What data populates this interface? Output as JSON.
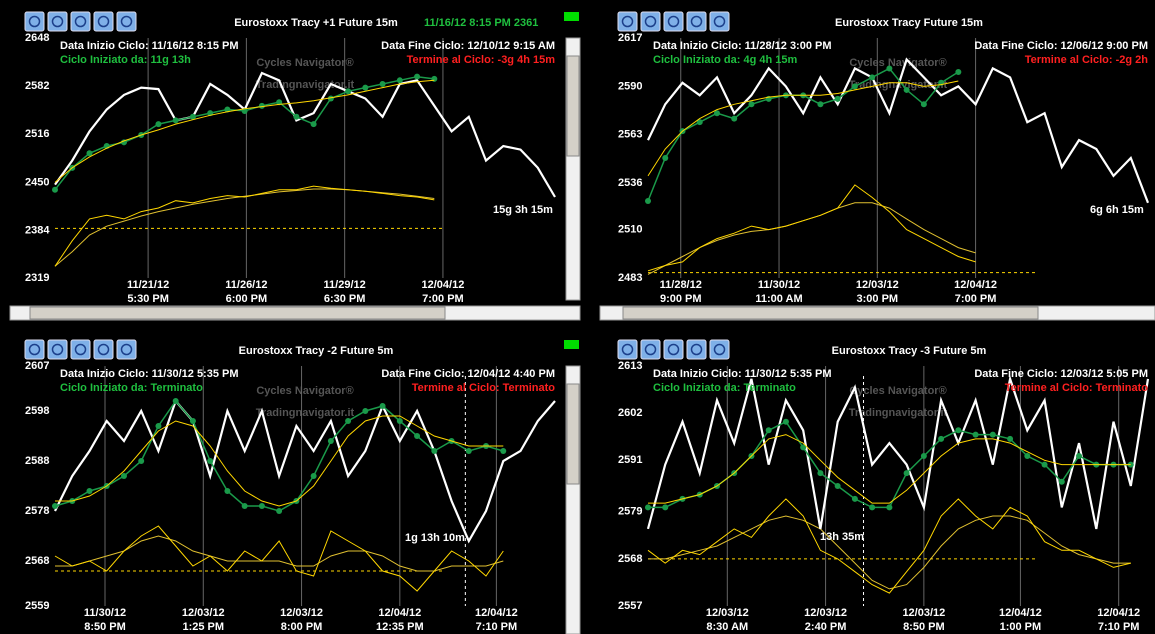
{
  "panels": [
    {
      "title": "Eurostoxx  Tracy +1  Future 15m",
      "status": "11/16/12 8:15 PM  2361",
      "indicator": "#00dd00",
      "start": "Data Inizio Ciclo: 11/16/12 8:15 PM",
      "end": "Data Fine Ciclo: 12/10/12 9:15 AM",
      "started": "Ciclo Iniziato da: 11g 13h",
      "remaining": "Termine al Ciclo: -3g 4h 15m",
      "watermark_1": "Cycles Navigator®",
      "watermark_2": "Tradingnavigator.it",
      "cycle_label": "15g 3h 15m",
      "chart_data": {
        "type": "line",
        "xlim": [
          0,
          29
        ],
        "ylim": [
          2319,
          2648
        ],
        "yticks": [
          2648,
          2582,
          2516,
          2450,
          2384,
          2319
        ],
        "xticks": [
          {
            "value": 5.4,
            "label": "11/21/12",
            "time": "5:30 PM"
          },
          {
            "value": 11.1,
            "label": "11/26/12",
            "time": "6:00 PM"
          },
          {
            "value": 16.8,
            "label": "11/29/12",
            "time": "6:30 PM"
          },
          {
            "value": 22.5,
            "label": "12/04/12",
            "time": "7:00 PM"
          }
        ],
        "threshold": 2387,
        "series": [
          {
            "color": "#e0c030",
            "values": [
              2335,
              2355,
              2378,
              2390,
              2397,
              2404,
              2410,
              2415,
              2420,
              2424,
              2428,
              2431,
              2434,
              2437,
              2439,
              2441,
              2441,
              2440,
              2438,
              2436,
              2434,
              2431,
              2428
            ]
          },
          {
            "color": "#ffd700",
            "values": [
              2335,
              2370,
              2400,
              2405,
              2400,
              2410,
              2415,
              2425,
              2422,
              2428,
              2432,
              2430,
              2435,
              2440,
              2440,
              2445,
              2442,
              2440,
              2438,
              2435,
              2432,
              2430,
              2426
            ]
          },
          {
            "color": "#ffffff",
            "values": [
              2447,
              2480,
              2520,
              2550,
              2570,
              2580,
              2578,
              2535,
              2540,
              2585,
              2570,
              2550,
              2600,
              2590,
              2535,
              2545,
              2585,
              2575,
              2565,
              2540,
              2585,
              2590,
              2555,
              2520,
              2540,
              2480,
              2500,
              2495,
              2470,
              2430
            ]
          },
          {
            "color": "#1a9a4a",
            "markers": true,
            "values": [
              2440,
              2470,
              2490,
              2500,
              2505,
              2515,
              2530,
              2535,
              2540,
              2545,
              2550,
              2548,
              2555,
              2560,
              2540,
              2530,
              2565,
              2575,
              2580,
              2585,
              2590,
              2595,
              2592
            ]
          },
          {
            "color": "#ffd700",
            "values": [
              2450,
              2470,
              2485,
              2497,
              2507,
              2515,
              2522,
              2530,
              2536,
              2542,
              2547,
              2551,
              2554,
              2557,
              2559,
              2562,
              2566,
              2570,
              2575,
              2580,
              2585,
              2588,
              2590
            ]
          }
        ]
      }
    },
    {
      "title": "Eurostoxx  Tracy  Future 15m",
      "start": "Data Inizio Ciclo: 11/28/12 3:00 PM",
      "end": "Data Fine Ciclo: 12/06/12 9:00 PM",
      "started": "Ciclo Iniziato da: 4g 4h 15m",
      "remaining": "Termine al Ciclo: -2g 2h",
      "watermark_1": "Cycles Navigator®",
      "watermark_2": "Tradingnavigator.it",
      "cycle_label": "6g 6h 15m",
      "chart_data": {
        "type": "line",
        "xlim": [
          0,
          29
        ],
        "ylim": [
          2483,
          2617
        ],
        "yticks": [
          2617,
          2590,
          2563,
          2536,
          2510,
          2483
        ],
        "xticks": [
          {
            "value": 1.9,
            "label": "11/28/12",
            "time": "9:00 PM"
          },
          {
            "value": 7.6,
            "label": "11/30/12",
            "time": "11:00 AM"
          },
          {
            "value": 13.3,
            "label": "12/03/12",
            "time": "3:00 PM"
          },
          {
            "value": 19.0,
            "label": "12/04/12",
            "time": "7:00 PM"
          }
        ],
        "threshold": 2486,
        "series": [
          {
            "color": "#e0c030",
            "values": [
              2485,
              2490,
              2495,
              2500,
              2504,
              2507,
              2509,
              2510,
              2512,
              2515,
              2518,
              2522,
              2525,
              2525,
              2522,
              2516,
              2510,
              2505,
              2500,
              2497
            ]
          },
          {
            "color": "#ffd700",
            "values": [
              2487,
              2490,
              2492,
              2500,
              2505,
              2508,
              2512,
              2510,
              2512,
              2515,
              2518,
              2522,
              2535,
              2528,
              2520,
              2510,
              2505,
              2500,
              2495,
              2492
            ]
          },
          {
            "color": "#ffffff",
            "values": [
              2560,
              2580,
              2592,
              2585,
              2595,
              2575,
              2585,
              2600,
              2590,
              2575,
              2595,
              2580,
              2600,
              2595,
              2575,
              2605,
              2595,
              2585,
              2590,
              2580,
              2600,
              2595,
              2570,
              2575,
              2545,
              2560,
              2555,
              2540,
              2550,
              2525
            ]
          },
          {
            "color": "#1a9a4a",
            "markers": true,
            "values": [
              2526,
              2550,
              2565,
              2570,
              2575,
              2572,
              2580,
              2583,
              2585,
              2585,
              2580,
              2583,
              2590,
              2595,
              2600,
              2588,
              2580,
              2592,
              2598
            ]
          },
          {
            "color": "#ffd700",
            "values": [
              2540,
              2555,
              2565,
              2572,
              2577,
              2580,
              2582,
              2584,
              2585,
              2585,
              2585,
              2586,
              2588,
              2590,
              2592,
              2592,
              2590,
              2591,
              2593
            ]
          }
        ]
      }
    },
    {
      "title": "Eurostoxx  Tracy -2  Future 5m",
      "indicator": "#00dd00",
      "start": "Data Inizio Ciclo: 11/30/12 5:35 PM",
      "end": "Data Fine Ciclo: 12/04/12 4:40 PM",
      "started": "Ciclo Iniziato da: Terminato",
      "remaining": "Termine al Ciclo: Terminato",
      "watermark_1": "Cycles Navigator®",
      "watermark_2": "Tradingnavigator.it",
      "cycle_label": "1g 13h 10m",
      "chart_data": {
        "type": "line",
        "xlim": [
          0,
          29
        ],
        "ylim": [
          2559,
          2607
        ],
        "yticks": [
          2607,
          2598,
          2588,
          2578,
          2568,
          2559
        ],
        "xticks": [
          {
            "value": 2.9,
            "label": "11/30/12",
            "time": "8:50 PM"
          },
          {
            "value": 8.6,
            "label": "12/03/12",
            "time": "1:25 PM"
          },
          {
            "value": 14.3,
            "label": "12/03/12",
            "time": "8:00 PM"
          },
          {
            "value": 20.0,
            "label": "12/04/12",
            "time": "12:35 PM"
          },
          {
            "value": 25.6,
            "label": "12/04/12",
            "time": "7:10 PM"
          }
        ],
        "threshold": 2566,
        "vline": 23.8,
        "series": [
          {
            "color": "#e0c030",
            "values": [
              2567,
              2567,
              2568,
              2569,
              2570,
              2572,
              2573,
              2572,
              2570,
              2569,
              2568,
              2568,
              2568,
              2568,
              2567,
              2567,
              2569,
              2570,
              2570,
              2569,
              2567,
              2566,
              2566,
              2567,
              2567,
              2567,
              2568
            ]
          },
          {
            "color": "#ffd700",
            "values": [
              2569,
              2567,
              2568,
              2566,
              2570,
              2573,
              2575,
              2571,
              2567,
              2569,
              2566,
              2570,
              2568,
              2572,
              2566,
              2565,
              2574,
              2572,
              2570,
              2566,
              2565,
              2562,
              2566,
              2570,
              2568,
              2565,
              2570
            ]
          },
          {
            "color": "#ffffff",
            "values": [
              2578,
              2585,
              2590,
              2596,
              2592,
              2598,
              2590,
              2600,
              2596,
              2585,
              2598,
              2590,
              2598,
              2585,
              2595,
              2590,
              2596,
              2585,
              2590,
              2599,
              2592,
              2598,
              2590,
              2580,
              2572,
              2578,
              2588,
              2590,
              2596,
              2600
            ]
          },
          {
            "color": "#1a9a4a",
            "markers": true,
            "values": [
              2579,
              2580,
              2582,
              2583,
              2585,
              2588,
              2595,
              2600,
              2596,
              2588,
              2582,
              2579,
              2579,
              2578,
              2580,
              2585,
              2592,
              2596,
              2598,
              2599,
              2596,
              2593,
              2590,
              2592,
              2590,
              2591,
              2590
            ]
          },
          {
            "color": "#ffd700",
            "values": [
              2580,
              2580,
              2581,
              2583,
              2586,
              2590,
              2594,
              2596,
              2595,
              2591,
              2586,
              2582,
              2580,
              2579,
              2580,
              2583,
              2588,
              2593,
              2596,
              2597,
              2597,
              2595,
              2593,
              2592,
              2591,
              2591,
              2591
            ]
          }
        ]
      }
    },
    {
      "title": "Eurostoxx  Tracy -3  Future 5m",
      "start": "Data Inizio Ciclo: 11/30/12 5:35 PM",
      "end": "Data Fine Ciclo: 12/03/12 5:05 PM",
      "started": "Ciclo Iniziato da: Terminato",
      "remaining": "Termine al Ciclo: Terminato",
      "watermark_1": "Cycles Navigator®",
      "watermark_2": "Tradingnavigator.it",
      "cycle_label": "13h 35m",
      "chart_data": {
        "type": "line",
        "xlim": [
          0,
          29
        ],
        "ylim": [
          2557,
          2613
        ],
        "yticks": [
          2613,
          2602,
          2591,
          2579,
          2568,
          2557
        ],
        "xticks": [
          {
            "value": 4.6,
            "label": "12/03/12",
            "time": "8:30 AM"
          },
          {
            "value": 10.3,
            "label": "12/03/12",
            "time": "2:40 PM"
          },
          {
            "value": 16.0,
            "label": "12/03/12",
            "time": "8:50 PM"
          },
          {
            "value": 21.6,
            "label": "12/04/12",
            "time": "1:00 PM"
          },
          {
            "value": 27.3,
            "label": "12/04/12",
            "time": "7:10 PM"
          }
        ],
        "threshold": 2568,
        "vline": 12.5,
        "series": [
          {
            "color": "#e0c030",
            "values": [
              2568,
              2568,
              2569,
              2570,
              2571,
              2573,
              2575,
              2577,
              2578,
              2577,
              2575,
              2571,
              2567,
              2563,
              2561,
              2562,
              2566,
              2571,
              2575,
              2577,
              2578,
              2578,
              2577,
              2574,
              2571,
              2569,
              2568,
              2567,
              2567
            ]
          },
          {
            "color": "#ffd700",
            "values": [
              2570,
              2567,
              2570,
              2569,
              2572,
              2575,
              2573,
              2578,
              2582,
              2578,
              2570,
              2568,
              2565,
              2562,
              2560,
              2565,
              2570,
              2578,
              2582,
              2578,
              2575,
              2580,
              2578,
              2572,
              2570,
              2570,
              2568,
              2566,
              2567
            ]
          },
          {
            "color": "#ffffff",
            "values": [
              2575,
              2590,
              2600,
              2588,
              2605,
              2595,
              2610,
              2590,
              2605,
              2598,
              2575,
              2600,
              2608,
              2590,
              2595,
              2590,
              2580,
              2605,
              2595,
              2605,
              2590,
              2610,
              2598,
              2605,
              2580,
              2595,
              2575,
              2600,
              2585,
              2610
            ]
          },
          {
            "color": "#1a9a4a",
            "markers": true,
            "values": [
              2580,
              2580,
              2582,
              2583,
              2585,
              2588,
              2592,
              2598,
              2600,
              2594,
              2588,
              2585,
              2582,
              2580,
              2580,
              2588,
              2592,
              2596,
              2598,
              2597,
              2597,
              2596,
              2592,
              2590,
              2586,
              2592,
              2590,
              2590,
              2590
            ]
          },
          {
            "color": "#ffd700",
            "values": [
              2581,
              2581,
              2582,
              2583,
              2585,
              2588,
              2592,
              2596,
              2597,
              2595,
              2591,
              2587,
              2584,
              2581,
              2581,
              2584,
              2588,
              2592,
              2595,
              2596,
              2596,
              2595,
              2593,
              2591,
              2590,
              2590,
              2590,
              2590,
              2590
            ]
          }
        ]
      }
    }
  ]
}
